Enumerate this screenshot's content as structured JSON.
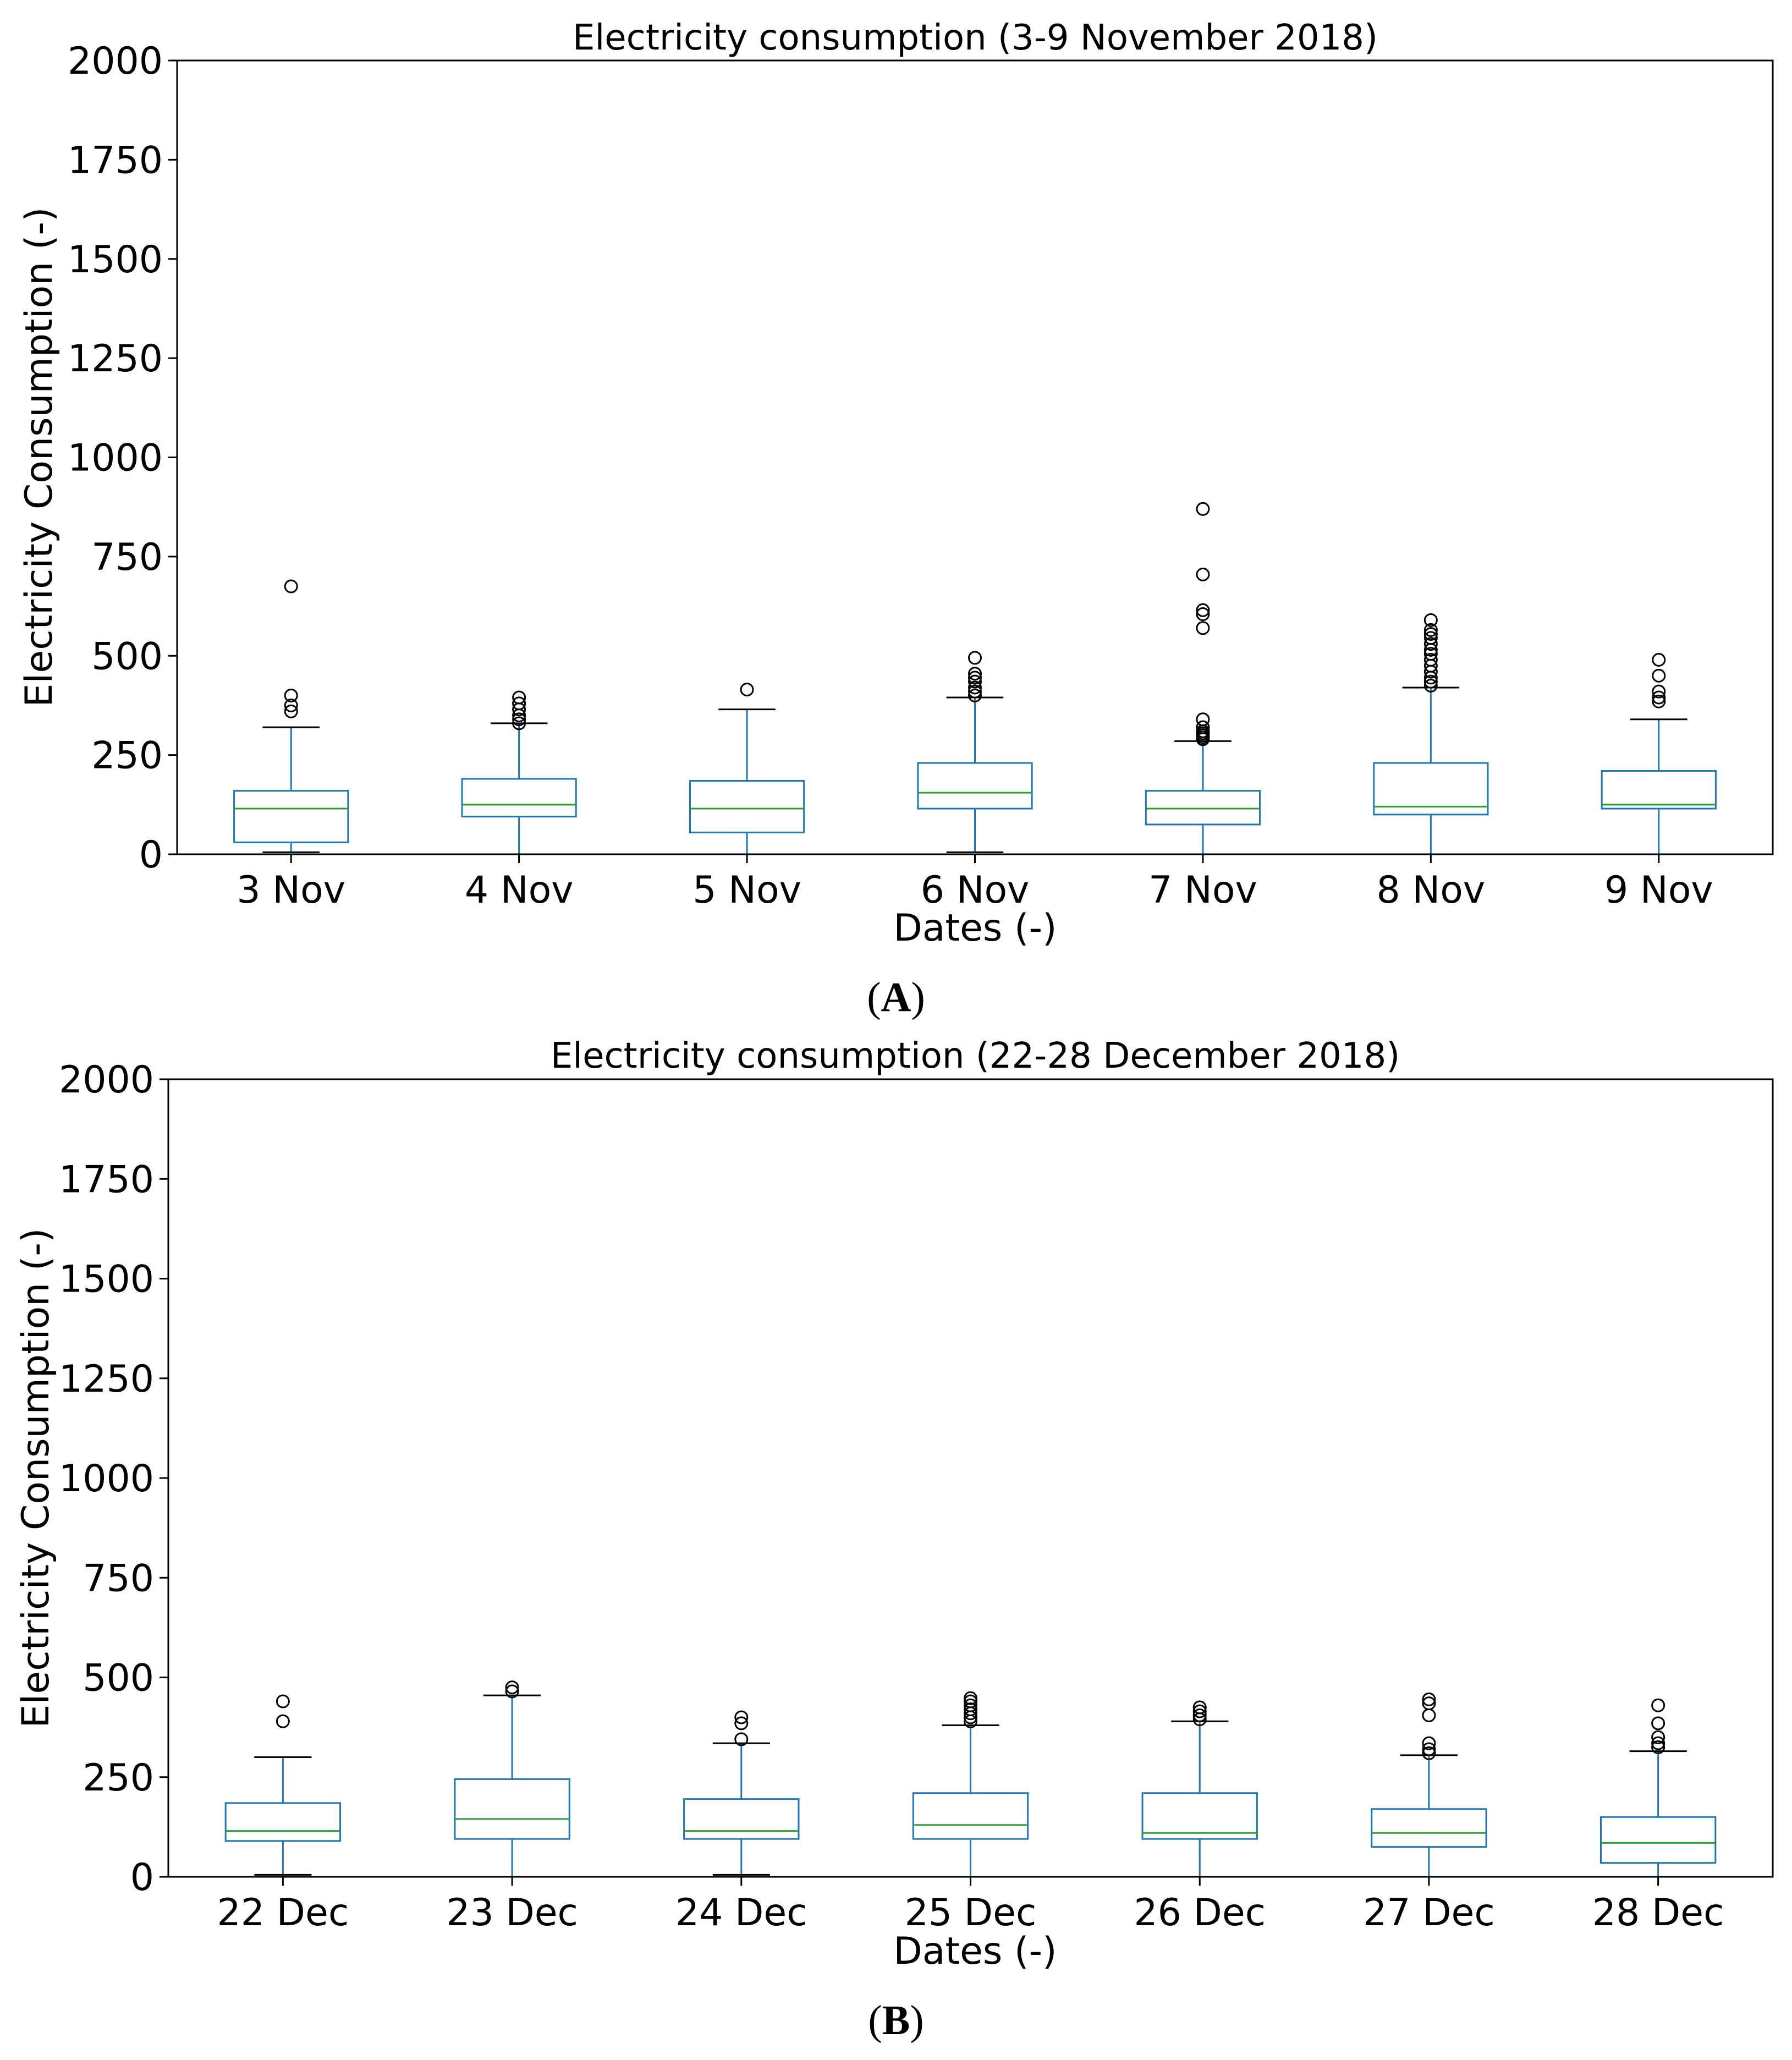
{
  "chart_data": [
    {
      "type": "box",
      "panel_label": "A",
      "title": "Electricity consumption (3-9 November 2018)",
      "xlabel": "Dates (-)",
      "ylabel": "Electricity Consumption (-)",
      "ylim": [
        0,
        2000
      ],
      "yticks": [
        "0",
        "250",
        "500",
        "750",
        "1000",
        "1250",
        "1500",
        "1750",
        "2000"
      ],
      "ytick_values": [
        0,
        250,
        500,
        750,
        1000,
        1250,
        1500,
        1750,
        2000
      ],
      "categories": [
        "3 Nov",
        "4 Nov",
        "5 Nov",
        "6 Nov",
        "7 Nov",
        "8 Nov",
        "9 Nov"
      ],
      "boxes": [
        {
          "whislo": 5,
          "q1": 30,
          "med": 115,
          "q3": 160,
          "whishi": 320,
          "fliers": [
            360,
            375,
            400,
            675
          ]
        },
        {
          "whislo": 0,
          "q1": 95,
          "med": 125,
          "q3": 190,
          "whishi": 330,
          "fliers": [
            330,
            340,
            350,
            365,
            380,
            395
          ]
        },
        {
          "whislo": 0,
          "q1": 55,
          "med": 115,
          "q3": 185,
          "whishi": 365,
          "fliers": [
            415
          ]
        },
        {
          "whislo": 5,
          "q1": 115,
          "med": 155,
          "q3": 230,
          "whishi": 395,
          "fliers": [
            400,
            410,
            420,
            435,
            445,
            455,
            495
          ]
        },
        {
          "whislo": 0,
          "q1": 75,
          "med": 115,
          "q3": 160,
          "whishi": 285,
          "fliers": [
            290,
            295,
            300,
            305,
            310,
            320,
            340,
            570,
            605,
            615,
            705,
            870
          ]
        },
        {
          "whislo": 0,
          "q1": 100,
          "med": 120,
          "q3": 230,
          "whishi": 420,
          "fliers": [
            425,
            435,
            445,
            460,
            475,
            490,
            505,
            515,
            530,
            545,
            555,
            565,
            590
          ]
        },
        {
          "whislo": 0,
          "q1": 115,
          "med": 125,
          "q3": 210,
          "whishi": 340,
          "fliers": [
            385,
            395,
            410,
            450,
            490
          ]
        }
      ],
      "colors": {
        "box": "#1f77b4",
        "median": "#2ca02c",
        "whisker_cap": "#000000",
        "flier": "#000000"
      }
    },
    {
      "type": "box",
      "panel_label": "B",
      "title": "Electricity consumption (22-28 December 2018)",
      "xlabel": "Dates (-)",
      "ylabel": "Electricity Consumption (-)",
      "ylim": [
        0,
        2000
      ],
      "yticks": [
        "0",
        "250",
        "500",
        "750",
        "1000",
        "1250",
        "1500",
        "1750",
        "2000"
      ],
      "ytick_values": [
        0,
        250,
        500,
        750,
        1000,
        1250,
        1500,
        1750,
        2000
      ],
      "categories": [
        "22 Dec",
        "23 Dec",
        "24 Dec",
        "25 Dec",
        "26 Dec",
        "27 Dec",
        "28 Dec"
      ],
      "boxes": [
        {
          "whislo": 5,
          "q1": 90,
          "med": 115,
          "q3": 185,
          "whishi": 300,
          "fliers": [
            390,
            440
          ]
        },
        {
          "whislo": 0,
          "q1": 95,
          "med": 145,
          "q3": 245,
          "whishi": 455,
          "fliers": [
            465,
            475
          ]
        },
        {
          "whislo": 5,
          "q1": 95,
          "med": 115,
          "q3": 195,
          "whishi": 335,
          "fliers": [
            345,
            385,
            400
          ]
        },
        {
          "whislo": 0,
          "q1": 95,
          "med": 130,
          "q3": 210,
          "whishi": 380,
          "fliers": [
            390,
            400,
            410,
            420,
            430,
            440,
            448
          ]
        },
        {
          "whislo": 0,
          "q1": 95,
          "med": 110,
          "q3": 210,
          "whishi": 390,
          "fliers": [
            395,
            405,
            415,
            425
          ]
        },
        {
          "whislo": 0,
          "q1": 75,
          "med": 110,
          "q3": 170,
          "whishi": 305,
          "fliers": [
            310,
            320,
            335,
            405,
            435,
            445
          ]
        },
        {
          "whislo": 0,
          "q1": 35,
          "med": 85,
          "q3": 150,
          "whishi": 315,
          "fliers": [
            325,
            335,
            350,
            385,
            430
          ]
        }
      ],
      "colors": {
        "box": "#1f77b4",
        "median": "#2ca02c",
        "whisker_cap": "#000000",
        "flier": "#000000"
      }
    }
  ]
}
